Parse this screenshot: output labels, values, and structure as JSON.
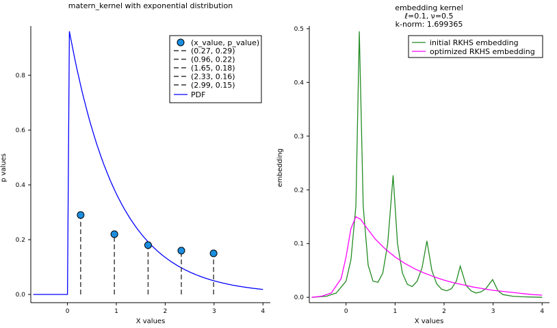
{
  "chart_data": [
    {
      "type": "scatter",
      "title": "matern_kernel with exponential distribution",
      "xlabel": "X values",
      "ylabel": "p values",
      "xlim": [
        -0.75,
        4.15
      ],
      "ylim": [
        -0.03,
        0.98
      ],
      "xticks": [
        0,
        1,
        2,
        3,
        4
      ],
      "yticks": [
        0.0,
        0.2,
        0.4,
        0.6,
        0.8
      ],
      "ytick_labels": [
        "0.0",
        "0.2",
        "0.4",
        "0.6",
        "0.8"
      ],
      "legend_position": "top-right",
      "points": {
        "name": "(x_value, p_value)",
        "color": "#1b8ee0",
        "x": [
          0.27,
          0.96,
          1.65,
          2.33,
          2.99
        ],
        "y": [
          0.29,
          0.22,
          0.18,
          0.16,
          0.15
        ]
      },
      "stems": [
        {
          "name": "(0.27, 0.29)",
          "x": 0.27,
          "y": 0.29
        },
        {
          "name": "(0.96, 0.22)",
          "x": 0.96,
          "y": 0.22
        },
        {
          "name": "(1.65, 0.18)",
          "x": 1.65,
          "y": 0.18
        },
        {
          "name": "(2.33, 0.16)",
          "x": 2.33,
          "y": 0.16
        },
        {
          "name": "(2.99, 0.15)",
          "x": 2.99,
          "y": 0.15
        }
      ],
      "pdf": {
        "name": "PDF",
        "color": "#0000ff",
        "distribution": "exponential",
        "rate": 1.0,
        "x_start": -0.7,
        "x_end": 4.0
      }
    },
    {
      "type": "line",
      "title": "embedding kernel",
      "subtitle": "ℓ=0.1, ν=0.5",
      "subtitle2": "k-norm: 1.699365",
      "xlabel": "X values",
      "ylabel": "embedding",
      "xlim": [
        -0.75,
        4.15
      ],
      "ylim": [
        -0.01,
        0.505
      ],
      "xticks": [
        0,
        1,
        2,
        3,
        4
      ],
      "yticks": [
        0.0,
        0.1,
        0.2,
        0.3,
        0.4,
        0.5
      ],
      "ytick_labels": [
        "0.0",
        "0.1",
        "0.2",
        "0.3",
        "0.4",
        "0.5"
      ],
      "legend_position": "top-right",
      "series": [
        {
          "name": "initial RKHS embedding",
          "color": "#228b22",
          "x": [
            -0.7,
            -0.4,
            -0.2,
            0.0,
            0.1,
            0.2,
            0.27,
            0.35,
            0.45,
            0.55,
            0.65,
            0.75,
            0.85,
            0.96,
            1.05,
            1.15,
            1.25,
            1.35,
            1.45,
            1.55,
            1.65,
            1.75,
            1.85,
            1.95,
            2.05,
            2.15,
            2.25,
            2.33,
            2.45,
            2.55,
            2.65,
            2.75,
            2.85,
            2.99,
            3.1,
            3.2,
            3.4,
            3.6,
            3.8,
            4.0
          ],
          "y": [
            0.0,
            0.002,
            0.008,
            0.03,
            0.07,
            0.17,
            0.495,
            0.17,
            0.06,
            0.03,
            0.028,
            0.045,
            0.1,
            0.227,
            0.1,
            0.045,
            0.024,
            0.02,
            0.03,
            0.055,
            0.105,
            0.05,
            0.025,
            0.015,
            0.012,
            0.016,
            0.03,
            0.058,
            0.022,
            0.012,
            0.008,
            0.01,
            0.016,
            0.033,
            0.012,
            0.005,
            0.002,
            0.001,
            0.0005,
            0.0
          ]
        },
        {
          "name": "optimized RKHS embedding",
          "color": "#ff00ff",
          "x": [
            -0.7,
            -0.5,
            -0.3,
            -0.1,
            0.0,
            0.1,
            0.2,
            0.3,
            0.4,
            0.5,
            0.6,
            0.8,
            1.0,
            1.2,
            1.4,
            1.6,
            1.8,
            2.0,
            2.2,
            2.4,
            2.6,
            2.8,
            3.0,
            3.2,
            3.4,
            3.6,
            3.8,
            4.0
          ],
          "y": [
            0.0,
            0.002,
            0.008,
            0.035,
            0.075,
            0.128,
            0.15,
            0.145,
            0.132,
            0.12,
            0.108,
            0.09,
            0.075,
            0.063,
            0.053,
            0.045,
            0.038,
            0.032,
            0.027,
            0.023,
            0.019,
            0.016,
            0.013,
            0.011,
            0.009,
            0.007,
            0.005,
            0.004
          ]
        }
      ]
    }
  ]
}
